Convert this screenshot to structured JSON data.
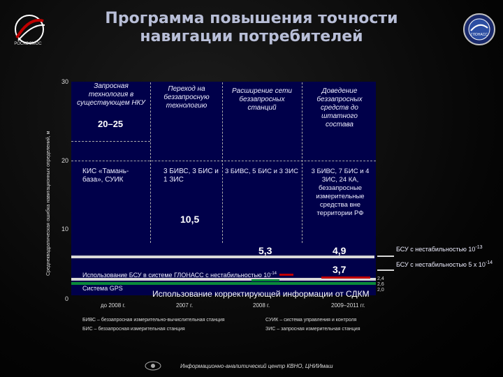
{
  "title_line1": "Программа повышения точности",
  "title_line2": "навигации потребителей",
  "logo_left_text": "РОСКОСМОС",
  "colors": {
    "plot_bg": "#00004a",
    "bar_red": "#e0e0e0",
    "bar_green": "#0a8a3a",
    "accent_red": "#c00000",
    "title": "#b9bfd8"
  },
  "chart_data": {
    "type": "table",
    "ylabel": "Среднеквадратическая ошибка навигационных определений, м",
    "ylim": [
      0,
      30
    ],
    "yticks": [
      "0",
      "10",
      "20",
      "30"
    ],
    "columns": [
      {
        "x": "до 2008 г.",
        "header": "Запросная технология в существующем НКУ",
        "range_label": "20–25",
        "composition": "КИС «Тамань-база», СУИК",
        "value_label": ""
      },
      {
        "x": "2007 г.",
        "header": "Переход на беззапросную технологию",
        "range_label": "",
        "composition": "3 БИВС, 3 БИС и 1 ЗИС",
        "value_label": "10,5"
      },
      {
        "x": "2008 г.",
        "header": "Расширение сети беззапросных станций",
        "range_label": "",
        "composition": "3 БИВС, 5 БИС и 3 ЗИС",
        "value_label": "5,3"
      },
      {
        "x": "2009–2011 гг.",
        "header": "Доведение беззапросных средств до штатного состава",
        "range_label": "",
        "composition": "3 БИВС, 7 БИС и 4 ЗИС, 24 КА, беззапросные измерительные средства вне территории РФ",
        "value_label": "4,9"
      }
    ],
    "extra_value": "3,7",
    "right_values": [
      "2,4",
      "2,6",
      "2,0"
    ],
    "annotations": {
      "bsu_text": "Использование БСУ в системе ГЛОНАСС с нестабильностью 10",
      "bsu_exp": "-14",
      "gps": "Система GPS",
      "sdkm": "Использование корректирующей информации от СДКМ",
      "bsu_right1": "БСУ с нестабильностью 10",
      "bsu_right1_exp": "-13",
      "bsu_right2": "БСУ с нестабильностью 5 х 10",
      "bsu_right2_exp": "-14"
    }
  },
  "legend": {
    "biws": "БИВС – беззапросная измерительно-вычислительная станция",
    "suik": "СУИК – система управления и контроля",
    "bis": "БИС – беззапросная измерительная станция",
    "zis": "ЗИС – запросная измерительная станция"
  },
  "footer": "Информационно-аналитический центр КВНО, ЦНИИмаш"
}
